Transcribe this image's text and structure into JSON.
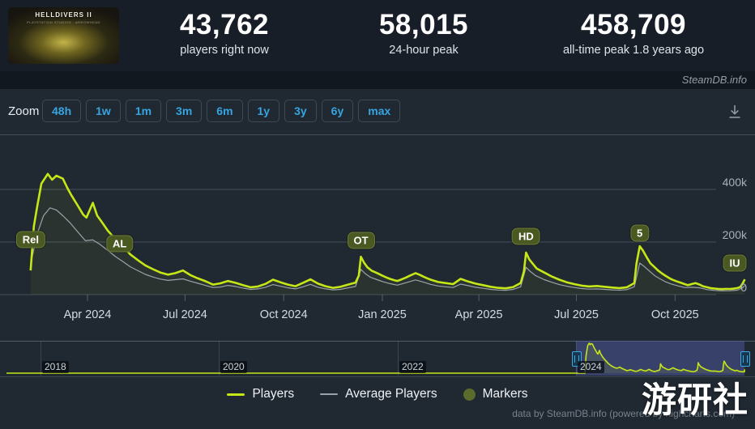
{
  "header": {
    "game_title": "HELLDIVERS II",
    "game_subtitle": "PLAYSTATION STUDIOS · ARROWHEAD",
    "stats": [
      {
        "value": "43,762",
        "label": "players right now"
      },
      {
        "value": "58,015",
        "label": "24-hour peak"
      },
      {
        "value": "458,709",
        "label": "all-time peak 1.8 years ago"
      }
    ]
  },
  "brand_bar": {
    "text": "SteamDB.info"
  },
  "toolbar": {
    "zoom_label": "Zoom",
    "ranges": [
      "48h",
      "1w",
      "1m",
      "3m",
      "6m",
      "1y",
      "3y",
      "6y",
      "max"
    ],
    "download_icon": "download-icon"
  },
  "chart_data": {
    "type": "line",
    "title": "",
    "xlabel": "",
    "ylabel": "",
    "ylim": [
      0,
      460000
    ],
    "grid": true,
    "legend_position": "bottom",
    "colors": {
      "players": "#c5e617",
      "average": "#9aa3ab",
      "marker_badge": "#4a5822"
    },
    "yticks": [
      {
        "value": 0,
        "label": "0"
      },
      {
        "value": 200000,
        "label": "200k"
      },
      {
        "value": 400000,
        "label": "400k"
      }
    ],
    "xticks": [
      {
        "date": "2024-04-01",
        "label": "Apr 2024"
      },
      {
        "date": "2024-07-01",
        "label": "Jul 2024"
      },
      {
        "date": "2024-10-01",
        "label": "Oct 2024"
      },
      {
        "date": "2025-01-01",
        "label": "Jan 2025"
      },
      {
        "date": "2025-04-01",
        "label": "Apr 2025"
      },
      {
        "date": "2025-07-01",
        "label": "Jul 2025"
      },
      {
        "date": "2025-10-01",
        "label": "Oct 2025"
      }
    ],
    "markers": [
      {
        "label": "Rel",
        "date": "2024-02-08"
      },
      {
        "label": "AL",
        "date": "2024-05-01"
      },
      {
        "label": "OT",
        "date": "2024-12-12"
      },
      {
        "label": "HD",
        "date": "2025-05-15"
      },
      {
        "label": "5",
        "date": "2025-08-29"
      },
      {
        "label": "IU",
        "date": "2025-11-28"
      }
    ],
    "series": [
      {
        "name": "Players",
        "points": [
          [
            "2024-02-08",
            92000
          ],
          [
            "2024-02-11",
            260000
          ],
          [
            "2024-02-14",
            333000
          ],
          [
            "2024-02-18",
            422000
          ],
          [
            "2024-02-24",
            458709
          ],
          [
            "2024-02-28",
            437000
          ],
          [
            "2024-03-03",
            452000
          ],
          [
            "2024-03-09",
            441000
          ],
          [
            "2024-03-13",
            407000
          ],
          [
            "2024-03-17",
            378000
          ],
          [
            "2024-03-23",
            338000
          ],
          [
            "2024-03-28",
            304000
          ],
          [
            "2024-03-31",
            293000
          ],
          [
            "2024-04-06",
            349000
          ],
          [
            "2024-04-10",
            301000
          ],
          [
            "2024-04-14",
            278000
          ],
          [
            "2024-04-20",
            243000
          ],
          [
            "2024-04-27",
            211000
          ],
          [
            "2024-05-04",
            183000
          ],
          [
            "2024-05-11",
            153000
          ],
          [
            "2024-05-18",
            131000
          ],
          [
            "2024-05-25",
            111000
          ],
          [
            "2024-06-01",
            97000
          ],
          [
            "2024-06-08",
            84000
          ],
          [
            "2024-06-15",
            76000
          ],
          [
            "2024-06-22",
            82000
          ],
          [
            "2024-06-29",
            92000
          ],
          [
            "2024-07-06",
            74000
          ],
          [
            "2024-07-13",
            62000
          ],
          [
            "2024-07-20",
            51000
          ],
          [
            "2024-07-27",
            38000
          ],
          [
            "2024-08-03",
            43000
          ],
          [
            "2024-08-10",
            52000
          ],
          [
            "2024-08-17",
            45000
          ],
          [
            "2024-08-24",
            36000
          ],
          [
            "2024-08-31",
            28000
          ],
          [
            "2024-09-07",
            31000
          ],
          [
            "2024-09-14",
            41000
          ],
          [
            "2024-09-21",
            57000
          ],
          [
            "2024-09-28",
            47000
          ],
          [
            "2024-10-05",
            38000
          ],
          [
            "2024-10-12",
            32000
          ],
          [
            "2024-10-19",
            45000
          ],
          [
            "2024-10-26",
            58000
          ],
          [
            "2024-11-02",
            42000
          ],
          [
            "2024-11-09",
            32000
          ],
          [
            "2024-11-16",
            26000
          ],
          [
            "2024-11-23",
            30000
          ],
          [
            "2024-11-30",
            38000
          ],
          [
            "2024-12-07",
            46000
          ],
          [
            "2024-12-10",
            72000
          ],
          [
            "2024-12-12",
            144000
          ],
          [
            "2024-12-15",
            121000
          ],
          [
            "2024-12-18",
            104000
          ],
          [
            "2024-12-22",
            91000
          ],
          [
            "2024-12-26",
            84000
          ],
          [
            "2024-12-29",
            78000
          ],
          [
            "2025-01-01",
            72000
          ],
          [
            "2025-01-05",
            65000
          ],
          [
            "2025-01-08",
            60000
          ],
          [
            "2025-01-12",
            55000
          ],
          [
            "2025-01-15",
            52000
          ],
          [
            "2025-01-19",
            58000
          ],
          [
            "2025-01-23",
            65000
          ],
          [
            "2025-01-26",
            71000
          ],
          [
            "2025-02-01",
            82000
          ],
          [
            "2025-02-05",
            75000
          ],
          [
            "2025-02-08",
            69000
          ],
          [
            "2025-02-12",
            62000
          ],
          [
            "2025-02-15",
            57000
          ],
          [
            "2025-02-19",
            52000
          ],
          [
            "2025-02-22",
            48000
          ],
          [
            "2025-03-01",
            44000
          ],
          [
            "2025-03-08",
            40000
          ],
          [
            "2025-03-15",
            60000
          ],
          [
            "2025-03-22",
            50000
          ],
          [
            "2025-03-29",
            42000
          ],
          [
            "2025-04-05",
            36000
          ],
          [
            "2025-04-12",
            30000
          ],
          [
            "2025-04-19",
            26000
          ],
          [
            "2025-04-26",
            24000
          ],
          [
            "2025-05-03",
            29000
          ],
          [
            "2025-05-10",
            44000
          ],
          [
            "2025-05-13",
            88000
          ],
          [
            "2025-05-15",
            160000
          ],
          [
            "2025-05-18",
            134000
          ],
          [
            "2025-05-22",
            114000
          ],
          [
            "2025-05-25",
            99000
          ],
          [
            "2025-06-01",
            84000
          ],
          [
            "2025-06-08",
            69000
          ],
          [
            "2025-06-15",
            57000
          ],
          [
            "2025-06-22",
            47000
          ],
          [
            "2025-06-29",
            40000
          ],
          [
            "2025-07-06",
            34000
          ],
          [
            "2025-07-13",
            31000
          ],
          [
            "2025-07-20",
            33000
          ],
          [
            "2025-07-27",
            30000
          ],
          [
            "2025-08-03",
            27000
          ],
          [
            "2025-08-10",
            25000
          ],
          [
            "2025-08-17",
            28000
          ],
          [
            "2025-08-24",
            44000
          ],
          [
            "2025-08-26",
            118000
          ],
          [
            "2025-08-29",
            184000
          ],
          [
            "2025-09-01",
            168000
          ],
          [
            "2025-09-05",
            139000
          ],
          [
            "2025-09-08",
            119000
          ],
          [
            "2025-09-12",
            104000
          ],
          [
            "2025-09-15",
            92000
          ],
          [
            "2025-09-19",
            80000
          ],
          [
            "2025-09-22",
            72000
          ],
          [
            "2025-09-26",
            62000
          ],
          [
            "2025-09-29",
            56000
          ],
          [
            "2025-10-03",
            50000
          ],
          [
            "2025-10-06",
            46000
          ],
          [
            "2025-10-10",
            40000
          ],
          [
            "2025-10-13",
            36000
          ],
          [
            "2025-10-17",
            41000
          ],
          [
            "2025-10-20",
            44000
          ],
          [
            "2025-10-24",
            38000
          ],
          [
            "2025-10-27",
            32000
          ],
          [
            "2025-10-31",
            28000
          ],
          [
            "2025-11-03",
            25000
          ],
          [
            "2025-11-07",
            23000
          ],
          [
            "2025-11-10",
            22000
          ],
          [
            "2025-11-14",
            21000
          ],
          [
            "2025-11-17",
            22000
          ],
          [
            "2025-11-21",
            21500
          ],
          [
            "2025-11-24",
            22500
          ],
          [
            "2025-11-28",
            25000
          ],
          [
            "2025-12-01",
            30000
          ],
          [
            "2025-12-03",
            42000
          ],
          [
            "2025-12-05",
            58015
          ]
        ]
      },
      {
        "name": "Average Players",
        "points": [
          [
            "2024-02-08",
            115000
          ],
          [
            "2024-02-14",
            230000
          ],
          [
            "2024-02-20",
            300000
          ],
          [
            "2024-02-26",
            330000
          ],
          [
            "2024-03-03",
            322000
          ],
          [
            "2024-03-09",
            300000
          ],
          [
            "2024-03-16",
            272000
          ],
          [
            "2024-03-23",
            238000
          ],
          [
            "2024-03-30",
            205000
          ],
          [
            "2024-04-06",
            208000
          ],
          [
            "2024-04-13",
            190000
          ],
          [
            "2024-04-20",
            168000
          ],
          [
            "2024-04-27",
            145000
          ],
          [
            "2024-05-04",
            126000
          ],
          [
            "2024-05-11",
            106000
          ],
          [
            "2024-05-18",
            91000
          ],
          [
            "2024-05-25",
            77000
          ],
          [
            "2024-06-01",
            67000
          ],
          [
            "2024-06-08",
            59000
          ],
          [
            "2024-06-15",
            54000
          ],
          [
            "2024-06-22",
            57000
          ],
          [
            "2024-06-29",
            60000
          ],
          [
            "2024-07-06",
            51000
          ],
          [
            "2024-07-13",
            43000
          ],
          [
            "2024-07-20",
            35000
          ],
          [
            "2024-07-27",
            27000
          ],
          [
            "2024-08-03",
            29000
          ],
          [
            "2024-08-10",
            35000
          ],
          [
            "2024-08-17",
            31000
          ],
          [
            "2024-08-24",
            25000
          ],
          [
            "2024-08-31",
            20000
          ],
          [
            "2024-09-07",
            22000
          ],
          [
            "2024-09-14",
            28000
          ],
          [
            "2024-09-21",
            38000
          ],
          [
            "2024-09-28",
            32000
          ],
          [
            "2024-10-05",
            26000
          ],
          [
            "2024-10-12",
            22000
          ],
          [
            "2024-10-19",
            30000
          ],
          [
            "2024-10-26",
            39000
          ],
          [
            "2024-11-02",
            28000
          ],
          [
            "2024-11-09",
            22000
          ],
          [
            "2024-11-16",
            18000
          ],
          [
            "2024-11-23",
            20000
          ],
          [
            "2024-11-30",
            26000
          ],
          [
            "2024-12-07",
            31000
          ],
          [
            "2024-12-12",
            96000
          ],
          [
            "2024-12-16",
            80000
          ],
          [
            "2024-12-21",
            66000
          ],
          [
            "2024-12-27",
            57000
          ],
          [
            "2025-01-01",
            50000
          ],
          [
            "2025-01-08",
            42000
          ],
          [
            "2025-01-15",
            36000
          ],
          [
            "2025-01-22",
            44000
          ],
          [
            "2025-02-01",
            56000
          ],
          [
            "2025-02-08",
            48000
          ],
          [
            "2025-02-15",
            39000
          ],
          [
            "2025-02-22",
            33000
          ],
          [
            "2025-03-01",
            30000
          ],
          [
            "2025-03-08",
            27000
          ],
          [
            "2025-03-15",
            40000
          ],
          [
            "2025-03-22",
            34000
          ],
          [
            "2025-03-29",
            28000
          ],
          [
            "2025-04-05",
            24000
          ],
          [
            "2025-04-12",
            20000
          ],
          [
            "2025-04-19",
            17500
          ],
          [
            "2025-04-26",
            16500
          ],
          [
            "2025-05-03",
            20000
          ],
          [
            "2025-05-10",
            30000
          ],
          [
            "2025-05-15",
            104000
          ],
          [
            "2025-05-19",
            88000
          ],
          [
            "2025-05-24",
            72000
          ],
          [
            "2025-06-01",
            57000
          ],
          [
            "2025-06-08",
            47000
          ],
          [
            "2025-06-15",
            38000
          ],
          [
            "2025-06-22",
            32000
          ],
          [
            "2025-06-29",
            27000
          ],
          [
            "2025-07-06",
            23000
          ],
          [
            "2025-07-13",
            21000
          ],
          [
            "2025-07-20",
            22000
          ],
          [
            "2025-07-27",
            20000
          ],
          [
            "2025-08-03",
            18000
          ],
          [
            "2025-08-10",
            17000
          ],
          [
            "2025-08-17",
            19000
          ],
          [
            "2025-08-24",
            30000
          ],
          [
            "2025-08-29",
            120000
          ],
          [
            "2025-09-02",
            108000
          ],
          [
            "2025-09-07",
            90000
          ],
          [
            "2025-09-12",
            72000
          ],
          [
            "2025-09-17",
            60000
          ],
          [
            "2025-09-22",
            49000
          ],
          [
            "2025-09-27",
            41000
          ],
          [
            "2025-10-03",
            34000
          ],
          [
            "2025-10-10",
            27000
          ],
          [
            "2025-10-17",
            28000
          ],
          [
            "2025-10-24",
            26000
          ],
          [
            "2025-10-31",
            19000
          ],
          [
            "2025-11-07",
            16000
          ],
          [
            "2025-11-14",
            14500
          ],
          [
            "2025-11-21",
            14800
          ],
          [
            "2025-11-28",
            17000
          ],
          [
            "2025-12-03",
            26000
          ],
          [
            "2025-12-05",
            35000
          ]
        ]
      }
    ],
    "navigator": {
      "year_ticks": [
        {
          "date": "2018-01-01",
          "label": "2018"
        },
        {
          "date": "2020-01-01",
          "label": "2020"
        },
        {
          "date": "2022-01-01",
          "label": "2022"
        },
        {
          "date": "2024-01-01",
          "label": "2024"
        }
      ],
      "selected_start": "2024-01-01",
      "selected_end": "2025-11-20",
      "history_start": "2017-08-01"
    }
  },
  "legend": {
    "items": [
      {
        "label": "Players",
        "swatch": "line",
        "color": "#c5e617"
      },
      {
        "label": "Average Players",
        "swatch": "line",
        "color": "#9aa3ab"
      },
      {
        "label": "Markers",
        "swatch": "circle",
        "color": "#5a6b2b"
      }
    ]
  },
  "footer": {
    "credit": "data by SteamDB.info (powered by highcharts.com)"
  },
  "watermark": {
    "text": "游研社"
  }
}
